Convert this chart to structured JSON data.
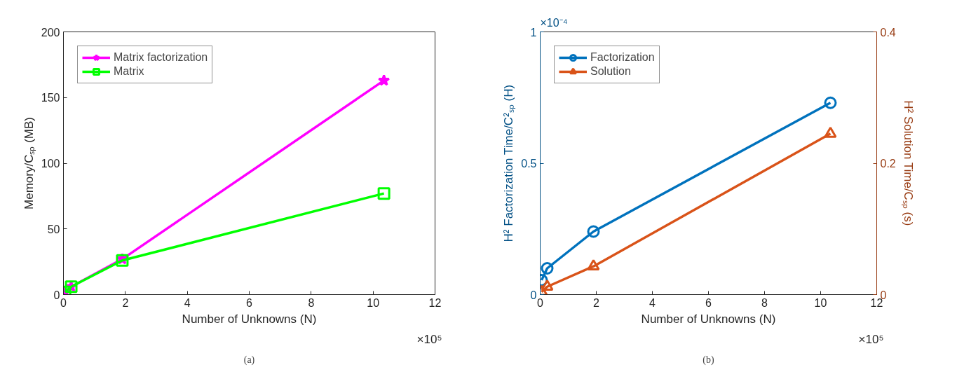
{
  "chart_data": [
    {
      "type": "line",
      "xlabel": "Number of Unknowns (N)",
      "ylabel": "Memory/Cₛₚ (MB)",
      "xlim": [
        0,
        12
      ],
      "xticks": [
        0,
        2,
        4,
        6,
        8,
        10,
        12
      ],
      "ylim": [
        0,
        200
      ],
      "yticks": [
        0,
        50,
        100,
        150,
        200
      ],
      "grid": false,
      "legend": "top left",
      "line_style": "solid",
      "annotations": [
        "×10⁵",
        "(a)"
      ],
      "series": [
        {
          "name": "Matrix factorization",
          "color": "#ff00ff",
          "marker": "star",
          "x": [
            0.05,
            0.25,
            1.9,
            10.35
          ],
          "values": [
            2,
            6,
            27,
            163
          ]
        },
        {
          "name": "Matrix",
          "color": "#00ff00",
          "marker": "square",
          "x": [
            0.05,
            0.25,
            1.9,
            10.35
          ],
          "values": [
            2,
            6,
            26,
            77
          ]
        }
      ]
    },
    {
      "type": "line",
      "xlabel": "Number of Unknowns (N)",
      "ylabel": "H² Factorization Time/C²ₛₚ (H)",
      "y2label": "H² Solution Time/Cₛₚ (s)",
      "xlim": [
        0,
        12
      ],
      "xticks": [
        0,
        2,
        4,
        6,
        8,
        10,
        12
      ],
      "ylim": [
        0,
        1
      ],
      "yticks": [
        0,
        0.5,
        1
      ],
      "y2lim": [
        0,
        0.4
      ],
      "y2ticks": [
        0,
        0.2,
        0.4
      ],
      "grid": false,
      "legend": "top left",
      "line_style": "solid",
      "annotations": [
        "×10⁵",
        "(b)",
        "×10⁻⁴"
      ],
      "series": [
        {
          "name": "Factorization",
          "color": "#0072bd",
          "marker": "circle",
          "x": [
            0.05,
            0.25,
            1.9,
            10.35
          ],
          "values": [
            0.055,
            0.1,
            0.24,
            0.73
          ]
        },
        {
          "name": "Solution",
          "color": "#d95319",
          "marker": "triangle",
          "axis": "y2",
          "x": [
            0.05,
            0.25,
            1.9,
            10.35
          ],
          "values": [
            0.004,
            0.012,
            0.043,
            0.245
          ]
        }
      ]
    }
  ]
}
